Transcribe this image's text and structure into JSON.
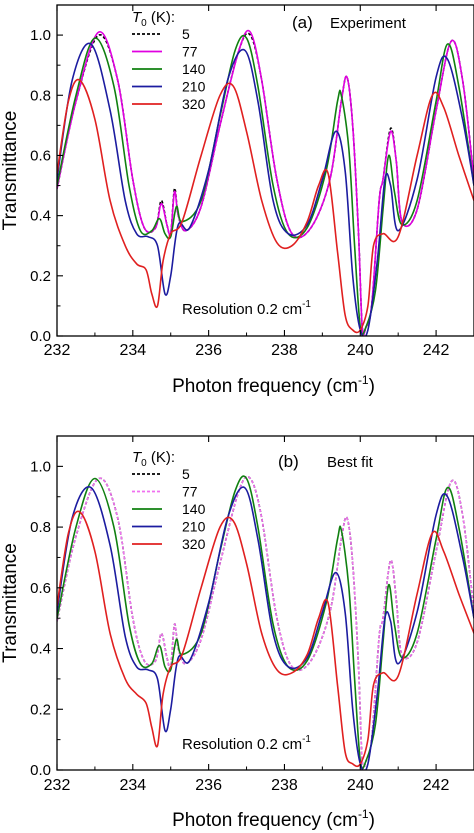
{
  "chart_data": [
    {
      "type": "line",
      "panel_label": "(a)",
      "title": "Experiment",
      "xlabel": "Photon frequency (cm",
      "xlabel_sup": "-1",
      "xlabel_close": ")",
      "ylabel": "Transmittance",
      "xlim": [
        232,
        243
      ],
      "ylim": [
        0.0,
        1.1
      ],
      "xticks": [
        "232",
        "234",
        "236",
        "238",
        "240",
        "242"
      ],
      "yticks": [
        "0.0",
        "0.2",
        "0.4",
        "0.6",
        "0.8",
        "1.0"
      ],
      "legend_title": "T",
      "legend_title_sub": "0",
      "legend_title_rest": " (K):",
      "legend_position": "top-left",
      "annotation": "Resolution 0.2 cm",
      "annotation_sup": "-1",
      "series": [
        {
          "name": "5",
          "color": "#000000",
          "dash": true,
          "x": [
            232.0,
            232.5,
            233.1,
            233.6,
            234.0,
            234.3,
            234.6,
            234.75,
            234.9,
            235.0,
            235.1,
            235.2,
            235.4,
            235.8,
            236.3,
            236.8,
            237.1,
            237.4,
            237.8,
            238.2,
            238.7,
            239.2,
            239.5,
            239.65,
            239.8,
            239.95,
            240.05,
            240.15,
            240.3,
            240.5,
            240.6,
            240.8,
            240.95,
            241.1,
            241.5,
            242.0,
            242.4,
            242.7,
            243.0
          ],
          "y": [
            0.49,
            0.78,
            1.0,
            0.85,
            0.52,
            0.36,
            0.36,
            0.45,
            0.37,
            0.34,
            0.49,
            0.4,
            0.35,
            0.43,
            0.7,
            0.95,
            1.0,
            0.85,
            0.52,
            0.34,
            0.36,
            0.52,
            0.78,
            0.86,
            0.7,
            0.35,
            0.03,
            0.03,
            0.1,
            0.45,
            0.52,
            0.69,
            0.58,
            0.38,
            0.42,
            0.75,
            0.98,
            0.85,
            0.52
          ]
        },
        {
          "name": "77",
          "color": "#e000e0",
          "dash": false,
          "x": [
            232.0,
            232.5,
            233.1,
            233.6,
            234.0,
            234.3,
            234.6,
            234.75,
            234.9,
            235.0,
            235.1,
            235.2,
            235.4,
            235.8,
            236.3,
            236.8,
            237.1,
            237.4,
            237.8,
            238.2,
            238.7,
            239.2,
            239.5,
            239.65,
            239.8,
            239.95,
            240.05,
            240.15,
            240.3,
            240.5,
            240.6,
            240.8,
            240.95,
            241.1,
            241.5,
            242.0,
            242.4,
            242.7,
            243.0
          ],
          "y": [
            0.49,
            0.78,
            1.01,
            0.85,
            0.52,
            0.36,
            0.36,
            0.44,
            0.37,
            0.34,
            0.48,
            0.4,
            0.35,
            0.43,
            0.7,
            0.95,
            1.01,
            0.85,
            0.52,
            0.34,
            0.36,
            0.52,
            0.78,
            0.86,
            0.7,
            0.35,
            0.03,
            0.03,
            0.1,
            0.45,
            0.52,
            0.68,
            0.58,
            0.38,
            0.42,
            0.75,
            0.98,
            0.85,
            0.52
          ]
        },
        {
          "name": "140",
          "color": "#108010",
          "dash": false,
          "x": [
            232.0,
            232.5,
            233.0,
            233.5,
            233.9,
            234.2,
            234.5,
            234.7,
            234.85,
            235.0,
            235.15,
            235.3,
            235.8,
            236.3,
            236.7,
            237.0,
            237.3,
            237.7,
            238.1,
            238.6,
            239.1,
            239.4,
            239.5,
            239.7,
            239.85,
            240.0,
            240.15,
            240.4,
            240.6,
            240.75,
            240.9,
            241.1,
            241.5,
            242.0,
            242.3,
            242.6,
            243.0
          ],
          "y": [
            0.5,
            0.8,
            0.99,
            0.83,
            0.5,
            0.35,
            0.35,
            0.39,
            0.34,
            0.33,
            0.43,
            0.38,
            0.45,
            0.73,
            0.95,
            0.99,
            0.83,
            0.5,
            0.34,
            0.36,
            0.55,
            0.78,
            0.8,
            0.62,
            0.3,
            0.03,
            0.03,
            0.15,
            0.42,
            0.6,
            0.48,
            0.37,
            0.45,
            0.78,
            0.97,
            0.83,
            0.5
          ]
        },
        {
          "name": "210",
          "color": "#1c1ca0",
          "dash": false,
          "x": [
            232.0,
            232.4,
            232.9,
            233.4,
            233.8,
            234.1,
            234.4,
            234.65,
            234.85,
            235.0,
            235.2,
            235.5,
            236.0,
            236.5,
            236.95,
            237.3,
            237.7,
            238.1,
            238.6,
            239.0,
            239.35,
            239.6,
            239.8,
            240.0,
            240.2,
            240.45,
            240.65,
            240.8,
            241.0,
            241.5,
            242.0,
            242.3,
            242.7,
            243.0
          ],
          "y": [
            0.52,
            0.85,
            0.97,
            0.75,
            0.45,
            0.34,
            0.33,
            0.3,
            0.14,
            0.2,
            0.37,
            0.36,
            0.55,
            0.85,
            0.95,
            0.78,
            0.45,
            0.34,
            0.37,
            0.52,
            0.68,
            0.55,
            0.2,
            0.02,
            0.02,
            0.25,
            0.52,
            0.5,
            0.35,
            0.52,
            0.86,
            0.92,
            0.72,
            0.5
          ]
        },
        {
          "name": "320",
          "color": "#e02020",
          "dash": false,
          "x": [
            232.0,
            232.3,
            232.6,
            233.0,
            233.4,
            233.8,
            234.1,
            234.35,
            234.5,
            234.65,
            234.8,
            235.0,
            235.3,
            235.8,
            236.3,
            236.65,
            237.0,
            237.4,
            237.8,
            238.2,
            238.6,
            238.9,
            239.15,
            239.4,
            239.6,
            239.8,
            240.0,
            240.2,
            240.35,
            240.6,
            241.0,
            241.5,
            241.9,
            242.2,
            242.6,
            243.0
          ],
          "y": [
            0.54,
            0.78,
            0.85,
            0.72,
            0.45,
            0.3,
            0.24,
            0.22,
            0.14,
            0.1,
            0.25,
            0.34,
            0.38,
            0.6,
            0.8,
            0.83,
            0.68,
            0.45,
            0.31,
            0.3,
            0.38,
            0.5,
            0.54,
            0.28,
            0.07,
            0.02,
            0.02,
            0.1,
            0.3,
            0.34,
            0.33,
            0.6,
            0.8,
            0.76,
            0.6,
            0.45
          ]
        }
      ]
    },
    {
      "type": "line",
      "panel_label": "(b)",
      "title": "Best fit",
      "xlabel": "Photon frequency (cm",
      "xlabel_sup": "-1",
      "xlabel_close": ")",
      "ylabel": "Transmittance",
      "xlim": [
        232,
        243
      ],
      "ylim": [
        0.0,
        1.1
      ],
      "xticks": [
        "232",
        "234",
        "236",
        "238",
        "240",
        "242"
      ],
      "yticks": [
        "0.0",
        "0.2",
        "0.4",
        "0.6",
        "0.8",
        "1.0"
      ],
      "legend_title": "T",
      "legend_title_sub": "0",
      "legend_title_rest": " (K):",
      "legend_position": "top-left",
      "annotation": "Resolution 0.2 cm",
      "annotation_sup": "-1",
      "series": [
        {
          "name": "5",
          "color": "#000000",
          "dash": true,
          "x": [
            232.0,
            232.5,
            233.1,
            233.6,
            234.0,
            234.3,
            234.6,
            234.75,
            234.9,
            235.0,
            235.1,
            235.2,
            235.4,
            235.8,
            236.3,
            236.8,
            237.1,
            237.4,
            237.8,
            238.2,
            238.7,
            239.2,
            239.5,
            239.65,
            239.8,
            239.95,
            240.05,
            240.15,
            240.3,
            240.5,
            240.6,
            240.8,
            240.95,
            241.1,
            241.5,
            242.0,
            242.4,
            242.7,
            243.0
          ],
          "y": [
            0.49,
            0.77,
            0.96,
            0.83,
            0.5,
            0.36,
            0.36,
            0.45,
            0.37,
            0.34,
            0.48,
            0.4,
            0.35,
            0.43,
            0.68,
            0.92,
            0.96,
            0.83,
            0.5,
            0.34,
            0.36,
            0.52,
            0.76,
            0.83,
            0.68,
            0.35,
            0.03,
            0.03,
            0.1,
            0.44,
            0.5,
            0.69,
            0.56,
            0.38,
            0.42,
            0.72,
            0.95,
            0.84,
            0.52
          ]
        },
        {
          "name": "77",
          "color": "#f070f0",
          "dash": true,
          "x": [
            232.0,
            232.5,
            233.1,
            233.6,
            234.0,
            234.3,
            234.6,
            234.75,
            234.9,
            235.0,
            235.1,
            235.2,
            235.4,
            235.8,
            236.3,
            236.8,
            237.1,
            237.4,
            237.8,
            238.2,
            238.7,
            239.2,
            239.5,
            239.65,
            239.8,
            239.95,
            240.05,
            240.15,
            240.3,
            240.5,
            240.6,
            240.8,
            240.95,
            241.1,
            241.5,
            242.0,
            242.4,
            242.7,
            243.0
          ],
          "y": [
            0.49,
            0.77,
            0.96,
            0.83,
            0.5,
            0.36,
            0.36,
            0.45,
            0.37,
            0.34,
            0.48,
            0.4,
            0.35,
            0.43,
            0.68,
            0.92,
            0.96,
            0.83,
            0.5,
            0.34,
            0.36,
            0.52,
            0.76,
            0.83,
            0.68,
            0.35,
            0.03,
            0.03,
            0.1,
            0.44,
            0.5,
            0.69,
            0.56,
            0.38,
            0.42,
            0.72,
            0.95,
            0.84,
            0.52
          ]
        },
        {
          "name": "140",
          "color": "#108010",
          "dash": false,
          "x": [
            232.0,
            232.5,
            233.0,
            233.5,
            233.9,
            234.2,
            234.5,
            234.7,
            234.85,
            235.0,
            235.15,
            235.3,
            235.8,
            236.3,
            236.7,
            237.0,
            237.3,
            237.7,
            238.1,
            238.6,
            239.1,
            239.4,
            239.5,
            239.7,
            239.85,
            240.0,
            240.15,
            240.4,
            240.6,
            240.75,
            240.9,
            241.1,
            241.5,
            242.0,
            242.3,
            242.6,
            243.0
          ],
          "y": [
            0.5,
            0.8,
            0.96,
            0.8,
            0.48,
            0.35,
            0.35,
            0.41,
            0.34,
            0.33,
            0.43,
            0.38,
            0.45,
            0.72,
            0.92,
            0.96,
            0.8,
            0.48,
            0.34,
            0.36,
            0.55,
            0.76,
            0.79,
            0.6,
            0.3,
            0.03,
            0.03,
            0.15,
            0.42,
            0.61,
            0.48,
            0.37,
            0.45,
            0.76,
            0.93,
            0.8,
            0.5
          ]
        },
        {
          "name": "210",
          "color": "#1c1ca0",
          "dash": false,
          "x": [
            232.0,
            232.4,
            232.9,
            233.4,
            233.8,
            234.1,
            234.4,
            234.65,
            234.85,
            235.0,
            235.2,
            235.5,
            236.0,
            236.5,
            236.95,
            237.3,
            237.7,
            238.1,
            238.6,
            239.0,
            239.35,
            239.6,
            239.8,
            240.0,
            240.2,
            240.45,
            240.65,
            240.8,
            241.0,
            241.5,
            242.0,
            242.3,
            242.7,
            243.0
          ],
          "y": [
            0.52,
            0.83,
            0.93,
            0.74,
            0.44,
            0.34,
            0.33,
            0.3,
            0.13,
            0.2,
            0.37,
            0.36,
            0.55,
            0.83,
            0.93,
            0.76,
            0.45,
            0.34,
            0.37,
            0.52,
            0.65,
            0.52,
            0.2,
            0.02,
            0.02,
            0.25,
            0.5,
            0.49,
            0.35,
            0.52,
            0.84,
            0.9,
            0.7,
            0.5
          ]
        },
        {
          "name": "320",
          "color": "#e02020",
          "dash": false,
          "x": [
            232.0,
            232.3,
            232.6,
            233.0,
            233.4,
            233.8,
            234.1,
            234.35,
            234.5,
            234.65,
            234.8,
            235.0,
            235.3,
            235.8,
            236.3,
            236.65,
            237.0,
            237.4,
            237.8,
            238.2,
            238.6,
            238.9,
            239.15,
            239.4,
            239.6,
            239.8,
            240.0,
            240.2,
            240.35,
            240.6,
            241.0,
            241.5,
            241.9,
            242.2,
            242.6,
            243.0
          ],
          "y": [
            0.54,
            0.78,
            0.85,
            0.72,
            0.45,
            0.3,
            0.25,
            0.22,
            0.14,
            0.08,
            0.25,
            0.34,
            0.38,
            0.6,
            0.8,
            0.82,
            0.68,
            0.45,
            0.33,
            0.32,
            0.38,
            0.5,
            0.55,
            0.28,
            0.06,
            0.02,
            0.02,
            0.1,
            0.28,
            0.32,
            0.31,
            0.58,
            0.78,
            0.72,
            0.58,
            0.45
          ]
        }
      ]
    }
  ]
}
